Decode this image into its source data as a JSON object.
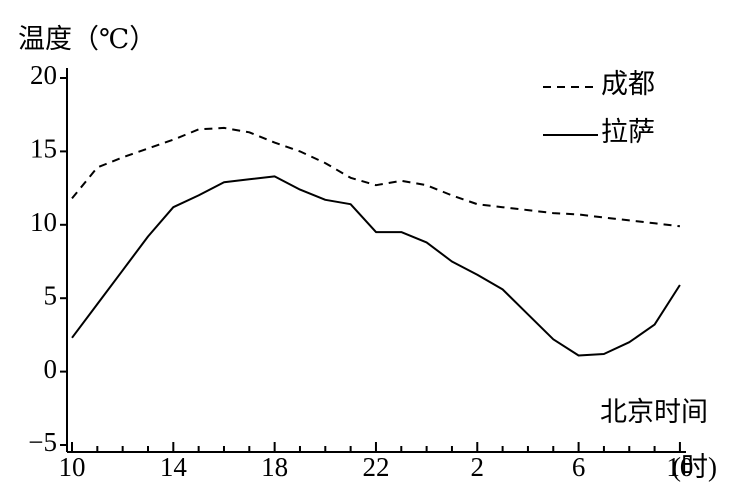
{
  "chart_data": {
    "type": "line",
    "y_label": "温度（℃）",
    "x_label": "北京时间",
    "x_unit": "(时)",
    "categories": [
      "10",
      null,
      null,
      null,
      "14",
      null,
      null,
      null,
      "18",
      null,
      null,
      null,
      "22",
      null,
      null,
      null,
      "2",
      null,
      null,
      null,
      "6",
      null,
      null,
      null,
      "10"
    ],
    "series": [
      {
        "name": "成都",
        "color": "#000000",
        "dash": true,
        "values": [
          11.8,
          13.9,
          14.6,
          15.2,
          15.8,
          16.5,
          16.6,
          16.3,
          15.6,
          15.0,
          14.2,
          13.2,
          12.7,
          13.0,
          12.7,
          12.0,
          11.4,
          11.2,
          11.0,
          10.8,
          10.7,
          10.5,
          10.3,
          10.1,
          9.9
        ]
      },
      {
        "name": "拉萨",
        "color": "#000000",
        "dash": false,
        "values": [
          2.3,
          4.6,
          6.9,
          9.2,
          11.2,
          12.0,
          12.9,
          13.1,
          13.3,
          12.4,
          11.7,
          11.4,
          9.5,
          9.5,
          8.8,
          7.5,
          6.6,
          5.6,
          3.9,
          2.2,
          1.1,
          1.2,
          2.0,
          3.2,
          5.9
        ]
      }
    ],
    "ylim": [
      -5,
      20
    ],
    "yticks": [
      20,
      15,
      10,
      5,
      0,
      {
        "value": -5,
        "label": "−5"
      }
    ],
    "legend": "upper right",
    "grid": false
  }
}
